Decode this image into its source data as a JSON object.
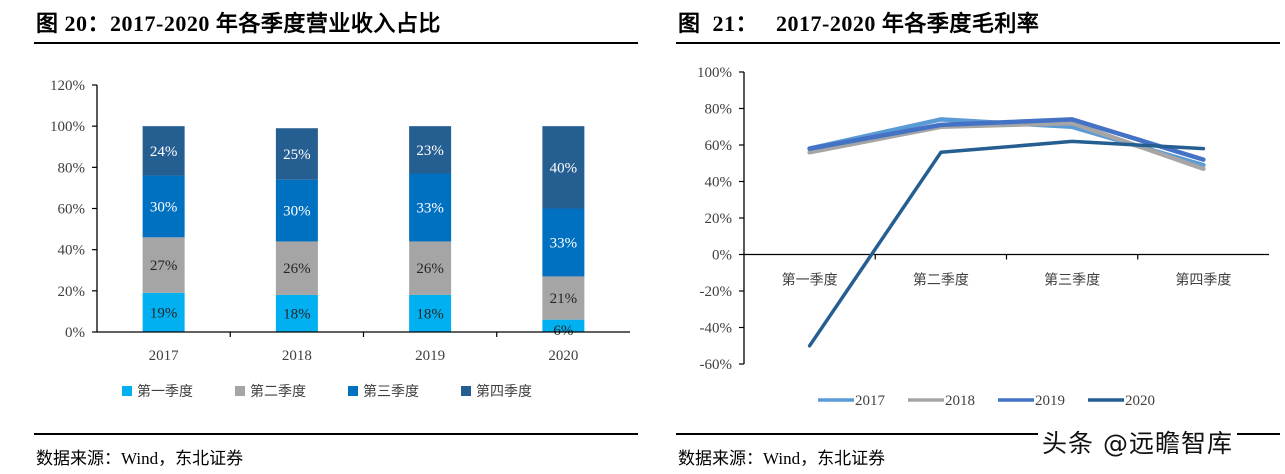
{
  "left": {
    "title": "图  20：2017-2020 年各季度营业收入占比",
    "source": "数据来源：Wind，东北证券"
  },
  "right": {
    "title": "图  21：   2017-2020 年各季度毛利率",
    "source": "数据来源：Wind，东北证券",
    "watermark": "头条 @远瞻智库"
  },
  "chart_data": [
    {
      "type": "bar",
      "stacked": true,
      "title": "2017-2020 年各季度营业收入占比",
      "categories": [
        "2017",
        "2018",
        "2019",
        "2020"
      ],
      "series": [
        {
          "name": "第一季度",
          "values": [
            19,
            18,
            18,
            6
          ],
          "color": "#00B0F0",
          "label_color": "#262626"
        },
        {
          "name": "第二季度",
          "values": [
            27,
            26,
            26,
            21
          ],
          "color": "#A5A5A5",
          "label_color": "#262626"
        },
        {
          "name": "第三季度",
          "values": [
            30,
            30,
            33,
            33
          ],
          "color": "#0070C0",
          "label_color": "#ffffff"
        },
        {
          "name": "第四季度",
          "values": [
            24,
            25,
            23,
            40
          ],
          "color": "#255E91",
          "label_color": "#ffffff"
        }
      ],
      "value_format": "percent",
      "ylim": [
        0,
        120
      ],
      "yticks": [
        "0%",
        "20%",
        "40%",
        "60%",
        "80%",
        "100%",
        "120%"
      ],
      "xlabel": "",
      "ylabel": "",
      "grid": false,
      "legend": "bottom"
    },
    {
      "type": "line",
      "title": "2017-2020 年各季度毛利率",
      "categories": [
        "第一季度",
        "第二季度",
        "第三季度",
        "第四季度"
      ],
      "series": [
        {
          "name": "2017",
          "values": [
            58,
            74,
            70,
            49
          ],
          "color": "#5B9BD5"
        },
        {
          "name": "2018",
          "values": [
            56,
            70,
            72,
            47
          ],
          "color": "#A5A5A5"
        },
        {
          "name": "2019",
          "values": [
            58,
            71,
            74,
            52
          ],
          "color": "#4472C4"
        },
        {
          "name": "2020",
          "values": [
            -50,
            56,
            62,
            58
          ],
          "color": "#255E91"
        }
      ],
      "value_format": "percent",
      "ylim": [
        -60,
        100
      ],
      "yticks": [
        "-60%",
        "-40%",
        "-20%",
        "0%",
        "20%",
        "40%",
        "60%",
        "80%",
        "100%"
      ],
      "xlabel": "",
      "ylabel": "",
      "grid": false,
      "legend": "bottom"
    }
  ]
}
